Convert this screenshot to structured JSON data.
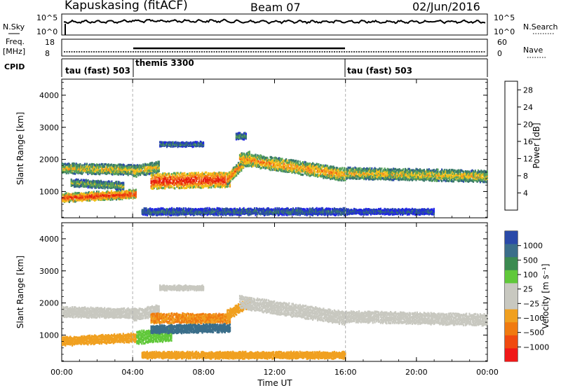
{
  "header": {
    "station": "Kapuskasing (fitACF)",
    "beam": "Beam 07",
    "date": "02/Jun/2016"
  },
  "strips": {
    "nsky_label": "N.Sky",
    "nsky_ticks": [
      "10^5",
      "10^0"
    ],
    "nsearch_label": "N.Search",
    "nsearch_ticks": [
      "10^5",
      "10^0"
    ],
    "freq_label": "Freq.",
    "freq_unit": "[MHz]",
    "freq_ticks": [
      "18",
      "8"
    ],
    "nave_label": "Nave",
    "nave_ticks": [
      "60",
      "0"
    ],
    "cpid_label": "CPID",
    "cpid_segments": [
      {
        "label": "tau (fast) 503",
        "start_hour": 0,
        "end_hour": 4
      },
      {
        "label": "themis 3300",
        "start_hour": 4,
        "end_hour": 16
      },
      {
        "label": "tau (fast) 503",
        "start_hour": 16,
        "end_hour": 24
      }
    ]
  },
  "colors": {
    "power_scale": [
      "#1f23e6",
      "#2a4aa8",
      "#3b7a6a",
      "#58a35a",
      "#f2c01a",
      "#f2901c",
      "#f05a14",
      "#e82010"
    ],
    "velocity_scale": [
      "#2a4aa8",
      "#3b6e8a",
      "#3b8a50",
      "#60c83a",
      "#c8c8c0",
      "#c8c8c0",
      "#f0a020",
      "#f07a10",
      "#f04a10",
      "#f01818"
    ],
    "dash": "#b0b0b0"
  },
  "chart_data": [
    {
      "type": "heatmap",
      "title": "",
      "xlabel": "Time UT",
      "ylabel": "Slant Range [km]",
      "x_ticks": [
        "00:00",
        "04:00",
        "08:00",
        "12:00",
        "16:00",
        "20:00",
        "00:00"
      ],
      "xlim": [
        0,
        24
      ],
      "y_ticks": [
        "1000",
        "2000",
        "3000",
        "4000"
      ],
      "ylim": [
        180,
        4500
      ],
      "colorbar_label": "Power [dB]",
      "colorbar_ticks": [
        "4",
        "8",
        "12",
        "16",
        "20",
        "24",
        "28"
      ],
      "colorbar_range": [
        0,
        30
      ],
      "mode_change_hours": [
        4,
        16
      ],
      "bands": [
        {
          "t0": 0,
          "t1": 4.2,
          "r_start": 1700,
          "r_end": 1650,
          "width": 260,
          "intensity": 0.55
        },
        {
          "t0": 0,
          "t1": 4.2,
          "r_start": 780,
          "r_end": 900,
          "width": 220,
          "intensity": 0.85
        },
        {
          "t0": 0.5,
          "t1": 3.5,
          "r_start": 1250,
          "r_end": 1150,
          "width": 180,
          "intensity": 0.45
        },
        {
          "t0": 4.0,
          "t1": 5.5,
          "r_start": 1600,
          "r_end": 1750,
          "width": 300,
          "intensity": 0.55
        },
        {
          "t0": 5.0,
          "t1": 9.5,
          "r_start": 1300,
          "r_end": 1350,
          "width": 420,
          "intensity": 0.9
        },
        {
          "t0": 9.3,
          "t1": 10.6,
          "r_start": 1350,
          "r_end": 2100,
          "width": 300,
          "intensity": 0.7
        },
        {
          "t0": 10.0,
          "t1": 16.0,
          "r_start": 2000,
          "r_end": 1500,
          "width": 350,
          "intensity": 0.65
        },
        {
          "t0": 16.0,
          "t1": 24.0,
          "r_start": 1550,
          "r_end": 1450,
          "width": 300,
          "intensity": 0.55
        },
        {
          "t0": 4.5,
          "t1": 16.0,
          "r_start": 350,
          "r_end": 350,
          "width": 160,
          "intensity": 0.25
        },
        {
          "t0": 16.0,
          "t1": 21.0,
          "r_start": 350,
          "r_end": 350,
          "width": 120,
          "intensity": 0.2
        },
        {
          "t0": 5.5,
          "t1": 8.0,
          "r_start": 2450,
          "r_end": 2450,
          "width": 100,
          "intensity": 0.3
        },
        {
          "t0": 9.8,
          "t1": 10.4,
          "r_start": 2700,
          "r_end": 2700,
          "width": 150,
          "intensity": 0.35
        }
      ]
    },
    {
      "type": "heatmap",
      "title": "",
      "xlabel": "Time UT",
      "ylabel": "Slant Range [km]",
      "x_ticks": [
        "00:00",
        "04:00",
        "08:00",
        "12:00",
        "16:00",
        "20:00",
        "00:00"
      ],
      "xlim": [
        0,
        24
      ],
      "y_ticks": [
        "1000",
        "2000",
        "3000",
        "4000"
      ],
      "ylim": [
        180,
        4500
      ],
      "colorbar_label": "Velocity [m s⁻¹]",
      "colorbar_ticks": [
        "1000",
        "500",
        "100",
        "25",
        "−25",
        "−100",
        "−500",
        "−1000"
      ],
      "colorbar_range": [
        -1250,
        1250
      ],
      "mode_change_hours": [
        4,
        16
      ],
      "bands": [
        {
          "t0": 0,
          "t1": 4.2,
          "r_start": 1700,
          "r_end": 1650,
          "width": 260,
          "velocity": 0
        },
        {
          "t0": 0,
          "t1": 4.2,
          "r_start": 780,
          "r_end": 900,
          "width": 220,
          "velocity": -120
        },
        {
          "t0": 4.0,
          "t1": 5.5,
          "r_start": 1600,
          "r_end": 1750,
          "width": 300,
          "velocity": 0
        },
        {
          "t0": 4.2,
          "t1": 6.2,
          "r_start": 900,
          "r_end": 1000,
          "width": 350,
          "velocity": 120
        },
        {
          "t0": 5.0,
          "t1": 9.5,
          "r_start": 1500,
          "r_end": 1500,
          "width": 250,
          "velocity": -300
        },
        {
          "t0": 5.0,
          "t1": 9.5,
          "r_start": 1150,
          "r_end": 1200,
          "width": 200,
          "velocity": 400
        },
        {
          "t0": 9.3,
          "t1": 10.6,
          "r_start": 1600,
          "r_end": 2000,
          "width": 250,
          "velocity": -250
        },
        {
          "t0": 10.0,
          "t1": 16.0,
          "r_start": 2000,
          "r_end": 1500,
          "width": 350,
          "velocity": 0
        },
        {
          "t0": 16.0,
          "t1": 24.0,
          "r_start": 1550,
          "r_end": 1450,
          "width": 300,
          "velocity": 0
        },
        {
          "t0": 4.5,
          "t1": 16.0,
          "r_start": 350,
          "r_end": 350,
          "width": 160,
          "velocity": -100
        },
        {
          "t0": 5.5,
          "t1": 8.0,
          "r_start": 2450,
          "r_end": 2450,
          "width": 100,
          "velocity": 0
        }
      ]
    }
  ]
}
